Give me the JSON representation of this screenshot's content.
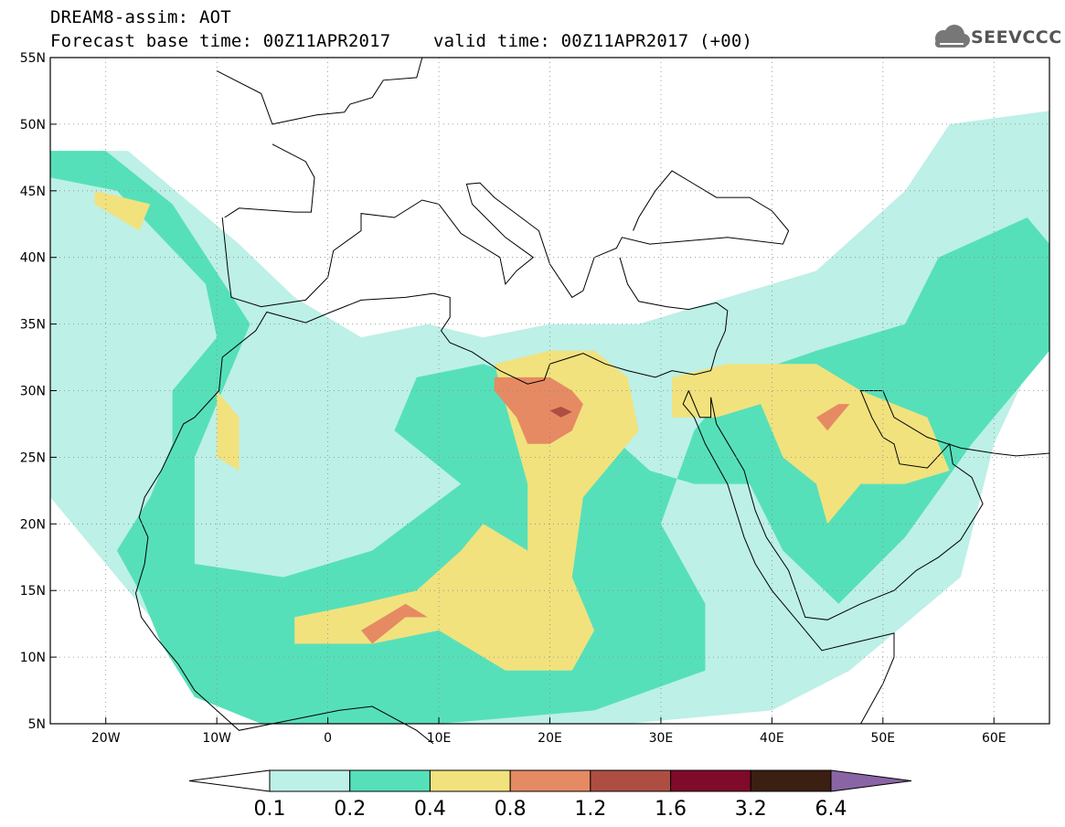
{
  "header": {
    "line1": "DREAM8-assim: AOT",
    "line2": "Forecast base time: 00Z11APR2017    valid time: 00Z11APR2017 (+00)",
    "logo_text": "SEEVCCC",
    "logo_icon": "cloud-icon"
  },
  "map": {
    "projection": "lat-lon",
    "lon_range": [
      -25,
      65
    ],
    "lat_range": [
      5,
      55
    ],
    "lat_ticks": [
      {
        "value": 55,
        "label": "55N"
      },
      {
        "value": 50,
        "label": "50N"
      },
      {
        "value": 45,
        "label": "45N"
      },
      {
        "value": 40,
        "label": "40N"
      },
      {
        "value": 35,
        "label": "35N"
      },
      {
        "value": 30,
        "label": "30N"
      },
      {
        "value": 25,
        "label": "25N"
      },
      {
        "value": 20,
        "label": "20N"
      },
      {
        "value": 15,
        "label": "15N"
      },
      {
        "value": 10,
        "label": "10N"
      },
      {
        "value": 5,
        "label": "5N"
      }
    ],
    "lon_ticks": [
      {
        "value": -20,
        "label": "20W"
      },
      {
        "value": -10,
        "label": "10W"
      },
      {
        "value": 0,
        "label": "0"
      },
      {
        "value": 10,
        "label": "10E"
      },
      {
        "value": 20,
        "label": "20E"
      },
      {
        "value": 30,
        "label": "30E"
      },
      {
        "value": 40,
        "label": "40E"
      },
      {
        "value": 50,
        "label": "50E"
      },
      {
        "value": 60,
        "label": "60E"
      }
    ],
    "grid": "dotted",
    "regions": [
      {
        "level": "0.1-0.2",
        "lon_lat": [
          [
            -25,
            48
          ],
          [
            -18,
            48
          ],
          [
            -8,
            41
          ],
          [
            -3,
            37
          ],
          [
            3,
            34
          ],
          [
            9,
            35
          ],
          [
            14,
            34
          ],
          [
            20,
            35
          ],
          [
            28,
            35
          ],
          [
            36,
            37
          ],
          [
            44,
            39
          ],
          [
            52,
            45
          ],
          [
            56,
            50
          ],
          [
            65,
            51
          ],
          [
            65,
            35
          ],
          [
            60,
            26
          ],
          [
            57,
            16
          ],
          [
            47,
            9
          ],
          [
            40,
            6
          ],
          [
            27,
            5
          ],
          [
            13,
            5
          ],
          [
            3,
            5
          ],
          [
            -8,
            6
          ],
          [
            -13,
            10
          ],
          [
            -17,
            14
          ],
          [
            -21,
            18
          ],
          [
            -25,
            22
          ]
        ]
      },
      {
        "level": "0.2-0.4",
        "lon_lat": [
          [
            -25,
            46
          ],
          [
            -19,
            45
          ],
          [
            -11,
            38
          ],
          [
            -10,
            34
          ],
          [
            -14,
            30
          ],
          [
            -14,
            26
          ],
          [
            -16,
            22
          ],
          [
            -19,
            18
          ],
          [
            -17,
            15
          ],
          [
            -15,
            11
          ],
          [
            -12,
            7
          ],
          [
            -6,
            5
          ],
          [
            10,
            5
          ],
          [
            24,
            6
          ],
          [
            34,
            9
          ],
          [
            34,
            14
          ],
          [
            30,
            20
          ],
          [
            33,
            27
          ],
          [
            37,
            31
          ],
          [
            44,
            33
          ],
          [
            52,
            35
          ],
          [
            55,
            40
          ],
          [
            63,
            43
          ],
          [
            65,
            41
          ],
          [
            65,
            33
          ],
          [
            58,
            26
          ],
          [
            52,
            19
          ],
          [
            46,
            14
          ],
          [
            41,
            18
          ],
          [
            38,
            23
          ],
          [
            33,
            23
          ],
          [
            29,
            24
          ],
          [
            21,
            30
          ],
          [
            14,
            32
          ],
          [
            8,
            31
          ],
          [
            6,
            27
          ],
          [
            12,
            23
          ],
          [
            4,
            18
          ],
          [
            -4,
            16
          ],
          [
            -12,
            17
          ],
          [
            -12,
            25
          ],
          [
            -9,
            31
          ],
          [
            -7,
            35
          ],
          [
            -14,
            44
          ],
          [
            -20,
            48
          ],
          [
            -25,
            48
          ]
        ]
      },
      {
        "level": "0.4-0.8",
        "lon_lat": [
          [
            -21,
            45
          ],
          [
            -16,
            44
          ],
          [
            -17,
            42
          ],
          [
            -21,
            44
          ]
        ]
      },
      {
        "level": "0.4-0.8",
        "lon_lat": [
          [
            -10,
            30
          ],
          [
            -8,
            28
          ],
          [
            -8,
            24
          ],
          [
            -10,
            25
          ]
        ]
      },
      {
        "level": "0.4-0.8",
        "lon_lat": [
          [
            -3,
            13
          ],
          [
            3,
            14
          ],
          [
            8,
            15
          ],
          [
            12,
            18
          ],
          [
            14,
            20
          ],
          [
            18,
            18
          ],
          [
            18,
            23
          ],
          [
            16,
            29
          ],
          [
            15,
            32
          ],
          [
            20,
            33
          ],
          [
            24,
            33
          ],
          [
            27,
            31
          ],
          [
            28,
            27
          ],
          [
            26,
            25
          ],
          [
            25,
            24
          ],
          [
            23,
            22
          ],
          [
            22,
            16
          ],
          [
            24,
            12
          ],
          [
            22,
            9
          ],
          [
            16,
            9
          ],
          [
            10,
            12
          ],
          [
            4,
            11
          ],
          [
            -3,
            11
          ]
        ]
      },
      {
        "level": "0.4-0.8",
        "lon_lat": [
          [
            31,
            31
          ],
          [
            36,
            32
          ],
          [
            44,
            32
          ],
          [
            48,
            30
          ],
          [
            54,
            28
          ],
          [
            56,
            24
          ],
          [
            52,
            23
          ],
          [
            48,
            23
          ],
          [
            45,
            20
          ],
          [
            44,
            23
          ],
          [
            41,
            25
          ],
          [
            39,
            29
          ],
          [
            35,
            28
          ],
          [
            31,
            28
          ]
        ]
      },
      {
        "level": "0.8-1.2",
        "lon_lat": [
          [
            15,
            31
          ],
          [
            18,
            31
          ],
          [
            20,
            31
          ],
          [
            22,
            30
          ],
          [
            23,
            29
          ],
          [
            22,
            27
          ],
          [
            20,
            26
          ],
          [
            18,
            26
          ],
          [
            17,
            28
          ],
          [
            15,
            30
          ]
        ]
      },
      {
        "level": "0.8-1.2",
        "lon_lat": [
          [
            3,
            12
          ],
          [
            5,
            13
          ],
          [
            7,
            14
          ],
          [
            9,
            13
          ],
          [
            7,
            13
          ],
          [
            4,
            11
          ]
        ]
      },
      {
        "level": "0.8-1.2",
        "lon_lat": [
          [
            44,
            28
          ],
          [
            46,
            29
          ],
          [
            47,
            29
          ],
          [
            45,
            27
          ]
        ]
      },
      {
        "level": "1.2-1.6",
        "lon_lat": [
          [
            20,
            28.5
          ],
          [
            21,
            28.8
          ],
          [
            22,
            28.4
          ],
          [
            21,
            28.0
          ]
        ]
      }
    ]
  },
  "colorbar": {
    "colors": [
      "#ffffff",
      "#bdf0e6",
      "#56e0b9",
      "#f1e27e",
      "#e68a63",
      "#ae4e43",
      "#7f0a2a",
      "#3a1f12",
      "#8a65a5"
    ],
    "labels": [
      "0.1",
      "0.2",
      "0.4",
      "0.8",
      "1.2",
      "1.6",
      "3.2",
      "6.4"
    ],
    "level_colors": {
      "0.1-0.2": "#bdf0e6",
      "0.2-0.4": "#56e0b9",
      "0.4-0.8": "#f1e27e",
      "0.8-1.2": "#e68a63",
      "1.2-1.6": "#ae4e43"
    }
  },
  "coastline_color": "#000000"
}
